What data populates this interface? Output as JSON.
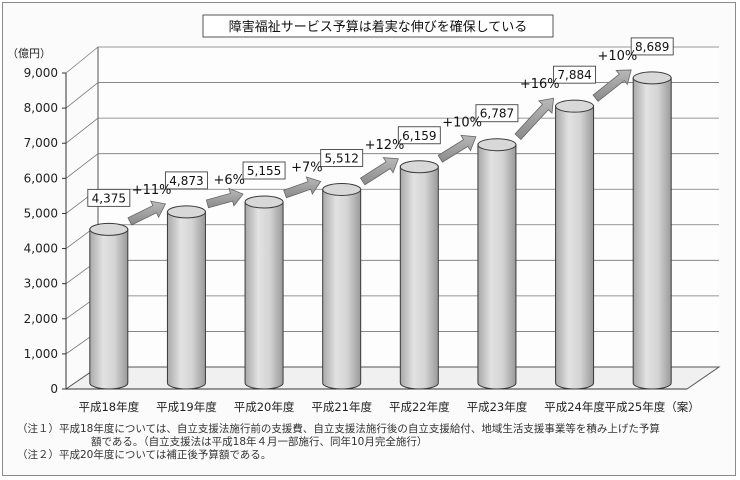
{
  "chart_data": {
    "type": "bar",
    "title": "障害福祉サービス予算は着実な伸びを確保している",
    "ylabel": "（億円）",
    "ylim": [
      0,
      9000
    ],
    "yticks": [
      "0",
      "1,000",
      "2,000",
      "3,000",
      "4,000",
      "5,000",
      "6,000",
      "7,000",
      "8,000",
      "9,000"
    ],
    "ytick_values": [
      0,
      1000,
      2000,
      3000,
      4000,
      5000,
      6000,
      7000,
      8000,
      9000
    ],
    "categories": [
      "平成18年度",
      "平成19年度",
      "平成20年度",
      "平成21年度",
      "平成22年度",
      "平成23年度",
      "平成24年度",
      "平成25年度（案）"
    ],
    "values": [
      4375,
      4873,
      5155,
      5512,
      6159,
      6787,
      7884,
      8689
    ],
    "value_labels": [
      "4,375",
      "4,873",
      "5,155",
      "5,512",
      "6,159",
      "6,787",
      "7,884",
      "8,689"
    ],
    "growth_labels": [
      "+11%",
      "+6%",
      "+7%",
      "+12%",
      "+10%",
      "+16%",
      "+10%"
    ],
    "grid": true,
    "colors": {
      "bar_top": "#d8d8d8",
      "bar_body": "#c4c4c4",
      "bar_edge": "#3a3a3a",
      "arrow": "#9a9a9a"
    }
  },
  "notes": {
    "note1_line1": "（注１）平成18年度については、自立支援法施行前の支援費、自立支援法施行後の自立支援給付、地域生活支援事業等を積み上げた予算",
    "note1_line2": "額である。（自立支援法は平成18年４月一部施行、同年10月完全施行）",
    "note2": "（注２）平成20年度については補正後予算額である。"
  }
}
